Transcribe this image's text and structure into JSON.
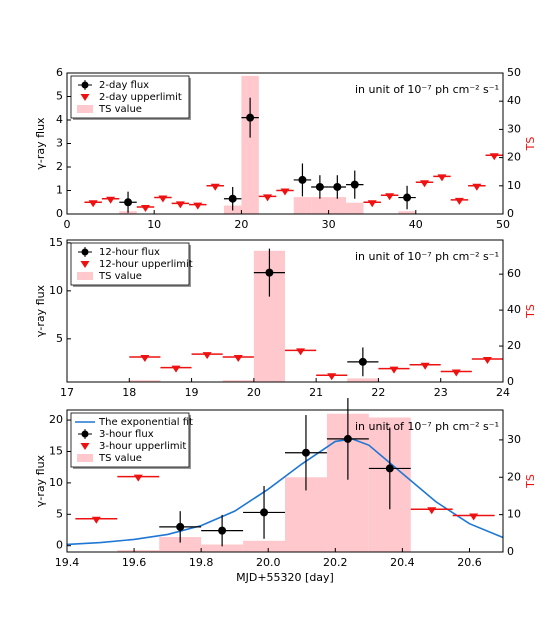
{
  "chart_data": [
    {
      "type": "errorbar",
      "ylabel": "γ-ray flux",
      "y2label": "TS",
      "annotation": "in unit of 10⁻⁷ ph cm⁻² s⁻¹",
      "xlim": [
        0,
        50
      ],
      "xticks": [
        0,
        10,
        20,
        30,
        40,
        50
      ],
      "ylim": [
        0,
        6
      ],
      "yticks": [
        0,
        1,
        2,
        3,
        4,
        5,
        6
      ],
      "y2lim": [
        0,
        50
      ],
      "y2ticks": [
        0,
        10,
        20,
        30,
        40,
        50
      ],
      "legend": "upper left",
      "series": [
        {
          "type": "errorbar",
          "name": "2-day flux",
          "color": "#000000",
          "x": [
            7,
            19,
            21,
            27,
            29,
            31,
            33,
            39
          ],
          "xerr": [
            1,
            1,
            1,
            1,
            1,
            1,
            1,
            1
          ],
          "values": [
            0.5,
            0.65,
            4.1,
            1.45,
            1.15,
            1.15,
            1.25,
            0.7
          ],
          "errors": [
            0.45,
            0.5,
            0.85,
            0.7,
            0.5,
            0.5,
            0.6,
            0.5
          ]
        },
        {
          "type": "upperlimit",
          "name": "2-day upperlimit",
          "color": "#ee1111",
          "x": [
            3,
            5,
            9,
            11,
            13,
            15,
            17,
            23,
            25,
            35,
            37,
            41,
            43,
            45,
            47,
            49
          ],
          "xerr": [
            1,
            1,
            1,
            1,
            1,
            1,
            1,
            1,
            1,
            1,
            1,
            1,
            1,
            1,
            1,
            1
          ],
          "values": [
            0.5,
            0.65,
            0.3,
            0.7,
            0.45,
            0.4,
            1.2,
            0.75,
            1.0,
            0.5,
            0.8,
            1.35,
            1.6,
            0.6,
            1.2,
            2.5
          ]
        },
        {
          "type": "histogram",
          "name": "TS value",
          "color": "#ffc8cc",
          "axis": "y2",
          "bins": [
            0,
            2,
            4,
            6,
            8,
            10,
            12,
            14,
            16,
            18,
            20,
            22,
            24,
            26,
            28,
            30,
            32,
            34,
            36,
            38,
            40,
            42,
            44,
            46,
            48,
            50
          ],
          "values": [
            0,
            0,
            0,
            1,
            0,
            0,
            0,
            0,
            0,
            3,
            49,
            0,
            0,
            6,
            6,
            6,
            4,
            0,
            0,
            1,
            0,
            0,
            0,
            0,
            0
          ]
        }
      ]
    },
    {
      "type": "errorbar",
      "ylabel": "γ-ray flux",
      "y2label": "TS",
      "annotation": "in unit of 10⁻⁷ ph cm⁻² s⁻¹",
      "xlim": [
        17,
        24
      ],
      "xticks": [
        17,
        18,
        19,
        20,
        21,
        22,
        23,
        24
      ],
      "ylim": [
        0.5,
        15.3
      ],
      "yticks": [
        5,
        10,
        15
      ],
      "y2lim": [
        0,
        79
      ],
      "y2ticks": [
        0,
        20,
        40,
        60
      ],
      "legend": "upper left",
      "series": [
        {
          "type": "errorbar",
          "name": "12-hour flux",
          "color": "#000000",
          "x": [
            20.25,
            21.75
          ],
          "xerr": [
            0.25,
            0.25
          ],
          "values": [
            11.9,
            2.6
          ],
          "errors": [
            2.5,
            1.5
          ]
        },
        {
          "type": "upperlimit",
          "name": "12-hour upperlimit",
          "color": "#ee1111",
          "x": [
            18.25,
            18.75,
            19.25,
            19.75,
            20.75,
            21.25,
            22.25,
            22.75,
            23.25,
            23.75
          ],
          "xerr": [
            0.25,
            0.25,
            0.25,
            0.25,
            0.25,
            0.25,
            0.25,
            0.25,
            0.25,
            0.25
          ],
          "values": [
            3.1,
            2.0,
            3.4,
            3.1,
            3.8,
            1.2,
            1.9,
            2.3,
            1.6,
            2.9
          ]
        },
        {
          "type": "histogram",
          "name": "TS value",
          "color": "#ffc8cc",
          "axis": "y2",
          "bins": [
            17,
            17.5,
            18,
            18.5,
            19,
            19.5,
            20,
            20.5,
            21,
            21.5,
            22,
            22.5,
            23,
            23.5,
            24
          ],
          "values": [
            0,
            0,
            1,
            0,
            0,
            1,
            73,
            0,
            0,
            2,
            0,
            0,
            0,
            0
          ]
        }
      ]
    },
    {
      "type": "errorbar",
      "ylabel": "γ-ray flux",
      "y2label": "TS",
      "xlabel": "MJD+55320 [day]",
      "annotation": "in unit of 10⁻⁷ ph cm⁻² s⁻¹",
      "xlim": [
        19.4,
        20.7
      ],
      "xticks": [
        19.4,
        19.6,
        19.8,
        {
          "value": 20,
          "label": "20.0"
        },
        20.2,
        20.4,
        20.6
      ],
      "ylim": [
        -1,
        21.6
      ],
      "yticks": [
        0,
        5,
        10,
        15,
        20
      ],
      "y2lim": [
        0,
        38
      ],
      "y2ticks": [
        0,
        10,
        20,
        30
      ],
      "legend": "upper left",
      "series": [
        {
          "type": "line",
          "name": "The exponential fit",
          "color": "#1f77d4",
          "x": [
            19.4,
            19.5,
            19.6,
            19.7,
            19.8,
            19.9,
            20.0,
            20.1,
            20.2,
            20.25,
            20.3,
            20.4,
            20.5,
            20.6,
            20.7
          ],
          "values": [
            0.2,
            0.5,
            1.0,
            1.8,
            3.2,
            5.5,
            9.0,
            13.0,
            16.6,
            17.0,
            16.0,
            11.5,
            7.0,
            3.5,
            1.3
          ]
        },
        {
          "type": "errorbar",
          "name": "3-hour flux",
          "color": "#000000",
          "x": [
            19.7375,
            19.8625,
            19.9875,
            20.1125,
            20.2375,
            20.3625
          ],
          "xerr": [
            0.0625,
            0.0625,
            0.0625,
            0.0625,
            0.0625,
            0.0625
          ],
          "values": [
            3.0,
            2.4,
            5.3,
            14.8,
            17.0,
            12.3
          ],
          "errors": [
            2.5,
            2.5,
            4.2,
            6.0,
            6.5,
            6.5
          ]
        },
        {
          "type": "upperlimit",
          "name": "3-hour upperlimit",
          "color": "#ee1111",
          "x": [
            19.4875,
            19.6125,
            20.4875,
            20.6125
          ],
          "xerr": [
            0.0625,
            0.0625,
            0.0625,
            0.0625
          ],
          "values": [
            4.3,
            11.0,
            5.8,
            4.8
          ]
        },
        {
          "type": "histogram",
          "name": "TS value",
          "color": "#ffc8cc",
          "axis": "y2",
          "bins": [
            19.55,
            19.675,
            19.8,
            19.925,
            20.05,
            20.175,
            20.3,
            20.425
          ],
          "values": [
            0.5,
            4,
            2,
            3,
            20,
            37,
            36
          ]
        }
      ]
    }
  ]
}
